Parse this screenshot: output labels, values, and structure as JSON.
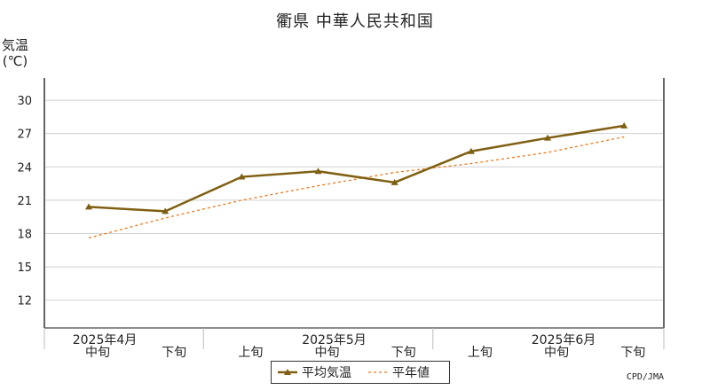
{
  "title": "衢県 中華人民共和国",
  "credit": "CPD/JMA",
  "colors": {
    "average": "#7f5f12",
    "normal": "#f07818",
    "grid": "#d0d0d0",
    "frame": "#666666"
  },
  "chart_data": {
    "type": "line",
    "ylabel_line1": "気温",
    "ylabel_line2": "(℃)",
    "ylim": [
      9.5,
      32
    ],
    "yticks": [
      12,
      15,
      18,
      21,
      24,
      27,
      30
    ],
    "categories": [
      "中旬",
      "下旬",
      "上旬",
      "中旬",
      "下旬",
      "上旬",
      "中旬",
      "下旬"
    ],
    "month_labels": [
      {
        "label": "2025年4月",
        "at": 0
      },
      {
        "label": "2025年5月",
        "at": 3
      },
      {
        "label": "2025年6月",
        "at": 6
      }
    ],
    "series": [
      {
        "name": "平均気温",
        "style": "solid-marker",
        "values": [
          20.4,
          20.0,
          23.1,
          23.6,
          22.6,
          25.4,
          26.6,
          27.7
        ]
      },
      {
        "name": "平年値",
        "style": "dotted",
        "values": [
          17.6,
          19.4,
          21.0,
          22.3,
          23.5,
          24.3,
          25.3,
          26.7
        ]
      }
    ],
    "grid": true,
    "legend_position": "bottom-center"
  }
}
